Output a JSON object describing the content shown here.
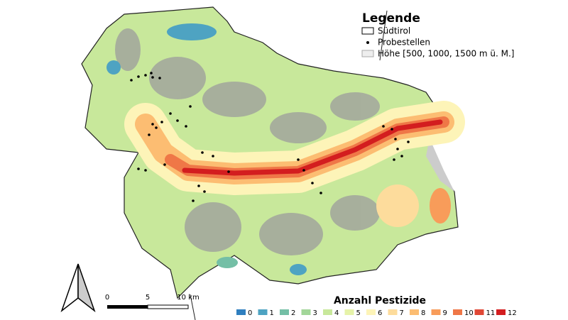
{
  "legend": {
    "title": "Legende",
    "items": [
      "Südtirol",
      "Probestellen",
      "Höhe [500, 1000, 1500 m ü. M.]"
    ]
  },
  "scalebar": {
    "labels": [
      "0",
      "5",
      "10 km"
    ]
  },
  "colorbar": {
    "title": "Anzahl Pestizide",
    "classes": [
      {
        "label": "0",
        "color": "#2f7fbf"
      },
      {
        "label": "1",
        "color": "#4ea3c2"
      },
      {
        "label": "2",
        "color": "#74bfa6"
      },
      {
        "label": "3",
        "color": "#a2d699"
      },
      {
        "label": "4",
        "color": "#c8e89b"
      },
      {
        "label": "5",
        "color": "#e6f3a9"
      },
      {
        "label": "6",
        "color": "#fdf4b8"
      },
      {
        "label": "7",
        "color": "#fddc9c"
      },
      {
        "label": "8",
        "color": "#fcbd72"
      },
      {
        "label": "9",
        "color": "#f89c5a"
      },
      {
        "label": "10",
        "color": "#ef7747"
      },
      {
        "label": "11",
        "color": "#e04836"
      },
      {
        "label": "12",
        "color": "#d31d1f"
      }
    ]
  }
}
